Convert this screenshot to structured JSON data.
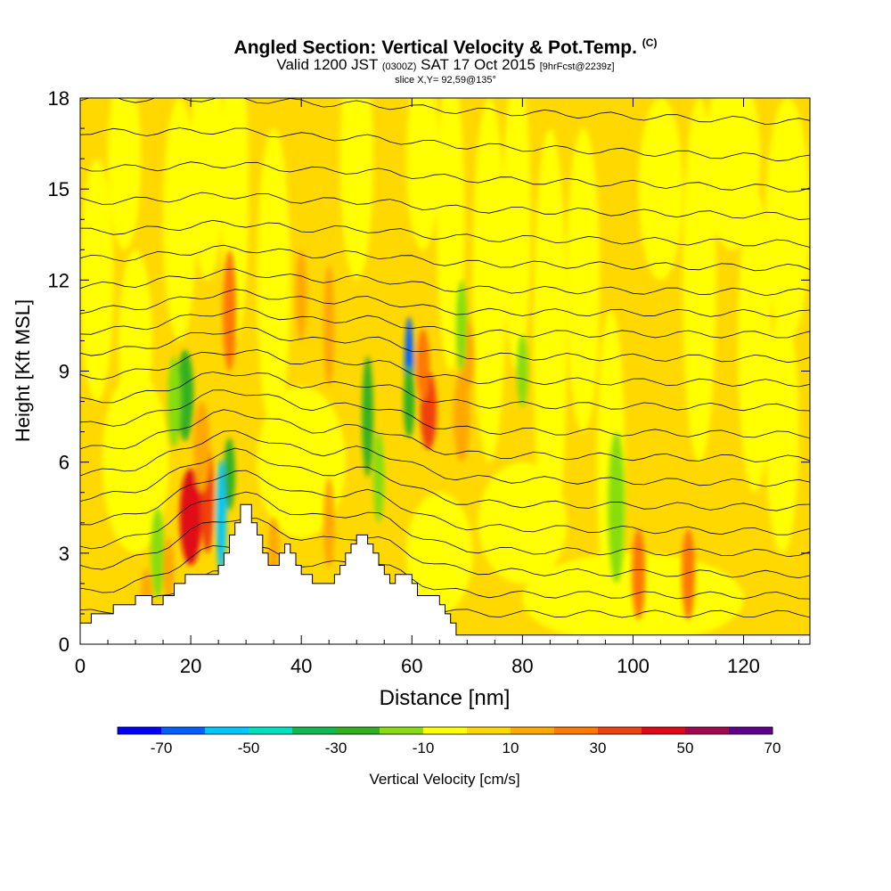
{
  "title": {
    "main": "Angled Section: Vertical Velocity & Pot.Temp.",
    "tag": "(C)",
    "valid_prefix": "Valid 1200 JST",
    "valid_utc": "(0300Z)",
    "valid_date": "SAT 17 Oct 2015",
    "forecast": "[9hrFcst@2239z]",
    "slice": "slice X,Y= 92,59@135°"
  },
  "chart_data": {
    "type": "heatmap",
    "xlabel": "Distance [nm]",
    "ylabel": "Height [Kft MSL]",
    "xlim": [
      0,
      132
    ],
    "ylim": [
      0,
      18
    ],
    "xticks": [
      0,
      20,
      40,
      60,
      80,
      100,
      120
    ],
    "yticks": [
      0,
      3,
      6,
      9,
      12,
      15,
      18
    ],
    "colorbar": {
      "label": "Vertical Velocity [cm/s]",
      "ticks": [
        -70,
        -50,
        -30,
        -10,
        10,
        30,
        50,
        70
      ],
      "min": -80,
      "step": 10,
      "colors": [
        "#0000ff",
        "#0060ff",
        "#00c8ff",
        "#00e0c0",
        "#10b850",
        "#30b020",
        "#88dd10",
        "#ffff00",
        "#ffd800",
        "#ffa800",
        "#ff7800",
        "#f04010",
        "#e00818",
        "#a00850",
        "#60008c"
      ]
    },
    "terrain": [
      [
        0,
        0.7
      ],
      [
        2,
        0.7
      ],
      [
        2,
        1.0
      ],
      [
        6,
        1.0
      ],
      [
        6,
        1.3
      ],
      [
        10,
        1.3
      ],
      [
        10,
        1.6
      ],
      [
        13,
        1.6
      ],
      [
        13,
        1.3
      ],
      [
        15,
        1.3
      ],
      [
        15,
        1.6
      ],
      [
        17,
        1.6
      ],
      [
        17,
        2.0
      ],
      [
        19,
        2.0
      ],
      [
        19,
        2.3
      ],
      [
        25,
        2.3
      ],
      [
        25,
        2.6
      ],
      [
        26,
        2.6
      ],
      [
        26,
        3.0
      ],
      [
        27,
        3.0
      ],
      [
        27,
        3.6
      ],
      [
        28,
        3.6
      ],
      [
        28,
        4.0
      ],
      [
        29,
        4.0
      ],
      [
        29,
        4.6
      ],
      [
        31,
        4.6
      ],
      [
        31,
        4.0
      ],
      [
        32,
        4.0
      ],
      [
        32,
        3.6
      ],
      [
        33,
        3.6
      ],
      [
        33,
        3.0
      ],
      [
        34,
        3.0
      ],
      [
        34,
        2.6
      ],
      [
        36,
        2.6
      ],
      [
        36,
        3.0
      ],
      [
        37,
        3.0
      ],
      [
        37,
        3.3
      ],
      [
        38,
        3.3
      ],
      [
        38,
        3.0
      ],
      [
        39,
        3.0
      ],
      [
        39,
        2.6
      ],
      [
        40,
        2.6
      ],
      [
        40,
        2.3
      ],
      [
        42,
        2.3
      ],
      [
        42,
        2.0
      ],
      [
        46,
        2.0
      ],
      [
        46,
        2.3
      ],
      [
        47,
        2.3
      ],
      [
        47,
        2.6
      ],
      [
        48,
        2.6
      ],
      [
        48,
        3.0
      ],
      [
        49,
        3.0
      ],
      [
        49,
        3.3
      ],
      [
        50,
        3.3
      ],
      [
        50,
        3.6
      ],
      [
        52,
        3.6
      ],
      [
        52,
        3.3
      ],
      [
        53,
        3.3
      ],
      [
        53,
        3.0
      ],
      [
        54,
        3.0
      ],
      [
        54,
        2.6
      ],
      [
        55,
        2.6
      ],
      [
        55,
        2.3
      ],
      [
        56,
        2.3
      ],
      [
        56,
        2.0
      ],
      [
        57,
        2.0
      ],
      [
        57,
        2.3
      ],
      [
        60,
        2.3
      ],
      [
        60,
        2.0
      ],
      [
        61,
        2.0
      ],
      [
        61,
        1.6
      ],
      [
        65,
        1.6
      ],
      [
        65,
        1.3
      ],
      [
        66,
        1.3
      ],
      [
        66,
        1.0
      ],
      [
        67,
        1.0
      ],
      [
        67,
        0.7
      ],
      [
        68,
        0.7
      ],
      [
        68,
        0.3
      ],
      [
        132,
        0.3
      ]
    ],
    "field_blobs": [
      {
        "x": 20,
        "y": 4.2,
        "w": 2.0,
        "h": 1.6,
        "v": 42
      },
      {
        "x": 23,
        "y": 4.8,
        "w": 1.2,
        "h": 1.8,
        "v": 32
      },
      {
        "x": 22,
        "y": 6.5,
        "w": 1.5,
        "h": 1.5,
        "v": 18
      },
      {
        "x": 27,
        "y": 11.0,
        "w": 1.2,
        "h": 2.0,
        "v": 20
      },
      {
        "x": 25.5,
        "y": 4.2,
        "w": 0.9,
        "h": 1.9,
        "v": -56
      },
      {
        "x": 27,
        "y": 5.6,
        "w": 1.0,
        "h": 1.2,
        "v": -22
      },
      {
        "x": 19,
        "y": 8.2,
        "w": 1.5,
        "h": 1.5,
        "v": -25
      },
      {
        "x": 17,
        "y": 8.0,
        "w": 1.2,
        "h": 1.5,
        "v": -15
      },
      {
        "x": 59.5,
        "y": 9.2,
        "w": 0.8,
        "h": 1.6,
        "v": -62
      },
      {
        "x": 59.5,
        "y": 8.0,
        "w": 1.0,
        "h": 1.2,
        "v": -30
      },
      {
        "x": 63,
        "y": 7.7,
        "w": 1.5,
        "h": 1.3,
        "v": 32
      },
      {
        "x": 62,
        "y": 9.2,
        "w": 1.2,
        "h": 1.2,
        "v": 20
      },
      {
        "x": 69,
        "y": 7.5,
        "w": 1.5,
        "h": 1.5,
        "v": 18
      },
      {
        "x": 70,
        "y": 9.5,
        "w": 1.2,
        "h": 1.2,
        "v": 16
      },
      {
        "x": 52,
        "y": 7.5,
        "w": 1.0,
        "h": 2.0,
        "v": -25
      },
      {
        "x": 54,
        "y": 5.5,
        "w": 1.0,
        "h": 1.5,
        "v": -15
      },
      {
        "x": 69,
        "y": 10.5,
        "w": 1.0,
        "h": 1.5,
        "v": -20
      },
      {
        "x": 45,
        "y": 4.0,
        "w": 1.0,
        "h": 1.5,
        "v": 15
      },
      {
        "x": 35,
        "y": 3.0,
        "w": 1.0,
        "h": 1.2,
        "v": 15
      },
      {
        "x": 101,
        "y": 2.3,
        "w": 1.2,
        "h": 1.5,
        "v": 25
      },
      {
        "x": 110,
        "y": 2.3,
        "w": 1.2,
        "h": 1.5,
        "v": 22
      },
      {
        "x": 97,
        "y": 4.5,
        "w": 1.5,
        "h": 2.5,
        "v": -15
      },
      {
        "x": 80,
        "y": 9.0,
        "w": 1.0,
        "h": 1.2,
        "v": -15
      },
      {
        "x": 14,
        "y": 3.0,
        "w": 1.2,
        "h": 1.5,
        "v": -15
      },
      {
        "x": 12,
        "y": 1.5,
        "w": 1.0,
        "h": 1.0,
        "v": 15
      },
      {
        "x": 16,
        "y": 2.5,
        "w": 1.0,
        "h": 1.0,
        "v": 15
      },
      {
        "x": 45,
        "y": 10.5,
        "w": 1.0,
        "h": 2.0,
        "v": 12
      },
      {
        "x": 40,
        "y": 11.5,
        "w": 1.0,
        "h": 1.5,
        "v": 12
      }
    ],
    "field_streaks": [
      {
        "x": 3,
        "y": 12,
        "w": 3,
        "h": 4,
        "v": -5
      },
      {
        "x": 10,
        "y": 10,
        "w": 3,
        "h": 3,
        "v": -5
      },
      {
        "x": 8,
        "y": 16,
        "w": 3,
        "h": 3,
        "v": -5
      },
      {
        "x": 18,
        "y": 14,
        "w": 3,
        "h": 4,
        "v": -5
      },
      {
        "x": 23,
        "y": 16,
        "w": 3,
        "h": 4,
        "v": -5
      },
      {
        "x": 28,
        "y": 15,
        "w": 2.5,
        "h": 5,
        "v": -5
      },
      {
        "x": 35,
        "y": 12,
        "w": 3,
        "h": 5,
        "v": -5
      },
      {
        "x": 50,
        "y": 16,
        "w": 3,
        "h": 4,
        "v": -5
      },
      {
        "x": 62,
        "y": 16,
        "w": 3,
        "h": 3,
        "v": -5
      },
      {
        "x": 67,
        "y": 14,
        "w": 2.5,
        "h": 5,
        "v": -5
      },
      {
        "x": 74,
        "y": 12,
        "w": 3,
        "h": 6,
        "v": -5
      },
      {
        "x": 79,
        "y": 14,
        "w": 2.5,
        "h": 5,
        "v": -5
      },
      {
        "x": 85,
        "y": 10,
        "w": 3,
        "h": 7,
        "v": -5
      },
      {
        "x": 91,
        "y": 12,
        "w": 3,
        "h": 5,
        "v": -5
      },
      {
        "x": 96,
        "y": 6,
        "w": 2.5,
        "h": 5,
        "v": -5
      },
      {
        "x": 105,
        "y": 15,
        "w": 4,
        "h": 3,
        "v": -5
      },
      {
        "x": 112,
        "y": 12,
        "w": 3,
        "h": 6,
        "v": -5
      },
      {
        "x": 118,
        "y": 16,
        "w": 5,
        "h": 3,
        "v": -5
      },
      {
        "x": 122,
        "y": 10,
        "w": 3,
        "h": 5,
        "v": -5
      },
      {
        "x": 128,
        "y": 14,
        "w": 4,
        "h": 4,
        "v": -5
      },
      {
        "x": 127,
        "y": 7,
        "w": 3,
        "h": 4,
        "v": -5
      },
      {
        "x": 80,
        "y": 4,
        "w": 8,
        "h": 2,
        "v": -5
      },
      {
        "x": 100,
        "y": 1.5,
        "w": 20,
        "h": 1.5,
        "v": -5
      },
      {
        "x": 10,
        "y": 6,
        "w": 6,
        "h": 3,
        "v": -5
      },
      {
        "x": 40,
        "y": 6,
        "w": 8,
        "h": 2.5,
        "v": -5
      },
      {
        "x": 65,
        "y": 3,
        "w": 6,
        "h": 2,
        "v": -5
      }
    ],
    "isentropes": [
      {
        "y0": 1.0,
        "y132": 1.0,
        "bump": 1.4
      },
      {
        "y0": 1.7,
        "y132": 1.6,
        "bump": 1.6
      },
      {
        "y0": 2.5,
        "y132": 2.3,
        "bump": 1.7
      },
      {
        "y0": 3.2,
        "y132": 3.0,
        "bump": 1.8
      },
      {
        "y0": 4.0,
        "y132": 3.7,
        "bump": 1.7
      },
      {
        "y0": 4.8,
        "y132": 4.5,
        "bump": 1.6
      },
      {
        "y0": 5.6,
        "y132": 5.3,
        "bump": 1.4
      },
      {
        "y0": 6.4,
        "y132": 6.1,
        "bump": 1.3
      },
      {
        "y0": 7.2,
        "y132": 6.9,
        "bump": 1.2
      },
      {
        "y0": 8.0,
        "y132": 7.8,
        "bump": 1.0
      },
      {
        "y0": 8.8,
        "y132": 8.6,
        "bump": 0.9
      },
      {
        "y0": 9.6,
        "y132": 9.4,
        "bump": 0.8
      },
      {
        "y0": 10.3,
        "y132": 10.2,
        "bump": 0.7
      },
      {
        "y0": 11.0,
        "y132": 10.9,
        "bump": 0.6
      },
      {
        "y0": 11.8,
        "y132": 11.6,
        "bump": 0.5
      },
      {
        "y0": 12.7,
        "y132": 12.4,
        "bump": 0.4
      },
      {
        "y0": 13.6,
        "y132": 13.2,
        "bump": 0.35
      },
      {
        "y0": 14.6,
        "y132": 14.1,
        "bump": 0.3
      },
      {
        "y0": 15.7,
        "y132": 15.0,
        "bump": 0.25
      },
      {
        "y0": 16.9,
        "y132": 16.0,
        "bump": 0.2
      },
      {
        "y0": 18.0,
        "y132": 17.2,
        "bump": 0.15
      }
    ]
  }
}
